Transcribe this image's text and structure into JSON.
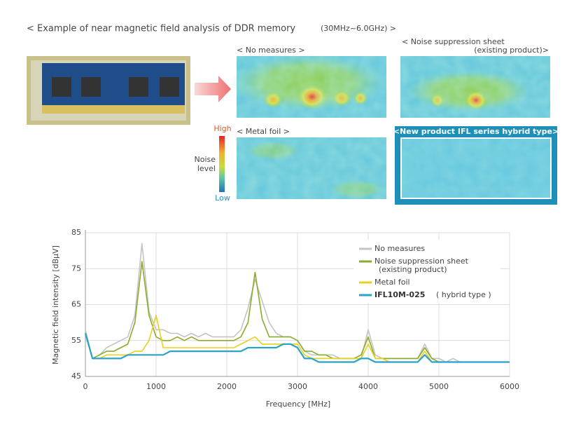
{
  "header": {
    "title": "< Example of near magnetic field analysis of DDR memory",
    "range": "(30MHz~6.0GHz) >"
  },
  "panels": {
    "no_measures": "< No measures >",
    "sheet": "< Noise suppression sheet",
    "sheet_note": "(existing product)>",
    "metal": "< Metal foil >",
    "new": "<New product IFL series hybrid type>"
  },
  "scale": {
    "high": "High",
    "label_1": "Noise",
    "label_2": "level",
    "low": "Low"
  },
  "chart_data": {
    "type": "line",
    "xlabel": "Frequency [MHz]",
    "ylabel": "Magnetic field intensity [dBμV]",
    "x": [
      0,
      100,
      200,
      300,
      400,
      500,
      600,
      700,
      800,
      900,
      1000,
      1100,
      1200,
      1300,
      1400,
      1500,
      1600,
      1700,
      1800,
      1900,
      2000,
      2100,
      2200,
      2300,
      2400,
      2500,
      2600,
      2700,
      2800,
      2900,
      3000,
      3100,
      3200,
      3300,
      3400,
      3500,
      3600,
      3700,
      3800,
      3900,
      4000,
      4100,
      4200,
      4300,
      4400,
      4500,
      4600,
      4700,
      4800,
      4900,
      5000,
      5100,
      5200,
      5300,
      5400,
      5500,
      5600,
      5700,
      5800,
      5900,
      6000
    ],
    "series": [
      {
        "name": "No measures",
        "color": "#c4c4c4",
        "values": [
          58,
          50,
          51,
          53,
          54,
          55,
          56,
          62,
          82,
          63,
          58,
          58,
          57,
          57,
          56,
          57,
          56,
          57,
          56,
          56,
          56,
          56,
          58,
          64,
          72,
          66,
          60,
          57,
          56,
          56,
          55,
          52,
          51,
          51,
          51,
          51,
          50,
          50,
          50,
          50,
          58,
          51,
          50,
          50,
          50,
          50,
          50,
          50,
          54,
          50,
          50,
          49,
          50,
          49,
          49,
          49,
          49,
          49,
          49,
          49,
          49
        ]
      },
      {
        "name": "Noise suppression sheet",
        "note": "(existing product)",
        "color": "#8aab2c",
        "values": [
          57,
          50,
          51,
          52,
          52,
          53,
          54,
          60,
          77,
          62,
          56,
          55,
          55,
          56,
          55,
          56,
          55,
          55,
          55,
          55,
          55,
          55,
          56,
          60,
          74,
          61,
          56,
          56,
          56,
          56,
          55,
          52,
          52,
          51,
          51,
          50,
          50,
          50,
          50,
          51,
          56,
          50,
          50,
          50,
          50,
          50,
          50,
          50,
          53,
          50,
          49,
          49,
          49,
          49,
          49,
          49,
          49,
          49,
          49,
          49,
          49
        ]
      },
      {
        "name": "Metal foil",
        "color": "#e8d01c",
        "values": [
          57,
          50,
          50,
          51,
          51,
          51,
          51,
          52,
          52,
          55,
          62,
          53,
          53,
          53,
          53,
          53,
          53,
          53,
          53,
          53,
          53,
          53,
          54,
          55,
          56,
          54,
          54,
          54,
          54,
          54,
          54,
          51,
          50,
          50,
          50,
          50,
          50,
          50,
          50,
          50,
          54,
          50,
          50,
          49,
          49,
          49,
          49,
          49,
          52,
          49,
          49,
          49,
          49,
          49,
          49,
          49,
          49,
          49,
          49,
          49,
          49
        ]
      },
      {
        "name": "IFL10M-025",
        "note": "( hybrid type )",
        "color": "#2ba2c8",
        "values": [
          57,
          50,
          50,
          50,
          50,
          50,
          51,
          51,
          51,
          51,
          51,
          51,
          52,
          52,
          52,
          52,
          52,
          52,
          52,
          52,
          52,
          52,
          52,
          53,
          53,
          53,
          53,
          53,
          54,
          54,
          53,
          50,
          50,
          49,
          49,
          49,
          49,
          49,
          49,
          50,
          50,
          49,
          49,
          49,
          49,
          49,
          49,
          49,
          51,
          49,
          49,
          49,
          49,
          49,
          49,
          49,
          49,
          49,
          49,
          49,
          49
        ]
      }
    ],
    "xlim": [
      0,
      6000
    ],
    "xticks": [
      0,
      1000,
      2000,
      3000,
      4000,
      5000,
      6000
    ],
    "ylim": [
      45,
      85
    ],
    "yticks": [
      45,
      55,
      65,
      75,
      85
    ],
    "grid": true,
    "legend": "upper right"
  }
}
